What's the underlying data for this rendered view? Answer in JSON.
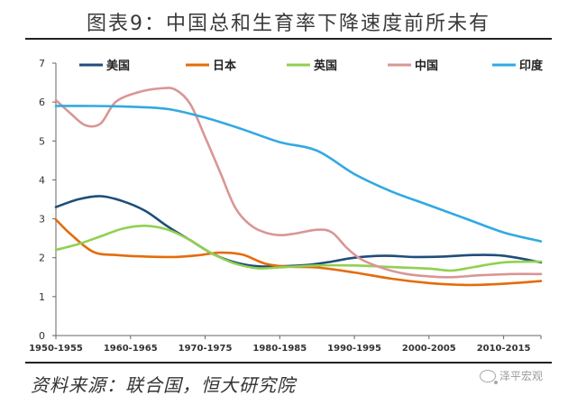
{
  "title": "图表9：中国总和生育率下降速度前所未有",
  "source": "资料来源：联合国，恒大研究院",
  "watermark": "泽平宏观",
  "chart_data": {
    "type": "line",
    "title": "图表9：中国总和生育率下降速度前所未有",
    "xlabel": "",
    "ylabel": "",
    "ylim": [
      0,
      7
    ],
    "yticks": [
      0,
      1,
      2,
      3,
      4,
      5,
      6,
      7
    ],
    "xlim": [
      1950,
      2015
    ],
    "xtick_labels": [
      "1950-1955",
      "1960-1965",
      "1970-1975",
      "1980-1985",
      "1990-1995",
      "2000-2005",
      "2010-2015"
    ],
    "xtick_positions": [
      1950,
      1960,
      1970,
      1980,
      1990,
      2000,
      2010
    ],
    "grid": false,
    "legend_position": "top",
    "series": [
      {
        "name": "美国",
        "color": "#1f4e79",
        "points": [
          [
            1950,
            3.3
          ],
          [
            1953,
            3.5
          ],
          [
            1956,
            3.58
          ],
          [
            1959,
            3.45
          ],
          [
            1962,
            3.2
          ],
          [
            1965,
            2.8
          ],
          [
            1968,
            2.45
          ],
          [
            1971,
            2.1
          ],
          [
            1974,
            1.88
          ],
          [
            1977,
            1.78
          ],
          [
            1980,
            1.78
          ],
          [
            1984,
            1.82
          ],
          [
            1987,
            1.9
          ],
          [
            1990,
            2.0
          ],
          [
            1994,
            2.05
          ],
          [
            1998,
            2.02
          ],
          [
            2002,
            2.03
          ],
          [
            2006,
            2.07
          ],
          [
            2010,
            2.05
          ],
          [
            2015,
            1.88
          ]
        ]
      },
      {
        "name": "日本",
        "color": "#e46c0a",
        "points": [
          [
            1950,
            2.98
          ],
          [
            1952,
            2.6
          ],
          [
            1955,
            2.15
          ],
          [
            1958,
            2.07
          ],
          [
            1962,
            2.03
          ],
          [
            1966,
            2.02
          ],
          [
            1969,
            2.06
          ],
          [
            1972,
            2.13
          ],
          [
            1975,
            2.08
          ],
          [
            1978,
            1.85
          ],
          [
            1981,
            1.77
          ],
          [
            1985,
            1.75
          ],
          [
            1990,
            1.62
          ],
          [
            1995,
            1.46
          ],
          [
            2000,
            1.35
          ],
          [
            2005,
            1.3
          ],
          [
            2010,
            1.33
          ],
          [
            2015,
            1.4
          ]
        ]
      },
      {
        "name": "英国",
        "color": "#92d050",
        "points": [
          [
            1950,
            2.2
          ],
          [
            1953,
            2.35
          ],
          [
            1956,
            2.55
          ],
          [
            1959,
            2.75
          ],
          [
            1962,
            2.82
          ],
          [
            1965,
            2.72
          ],
          [
            1968,
            2.45
          ],
          [
            1971,
            2.1
          ],
          [
            1974,
            1.85
          ],
          [
            1977,
            1.73
          ],
          [
            1980,
            1.75
          ],
          [
            1985,
            1.8
          ],
          [
            1990,
            1.8
          ],
          [
            1995,
            1.76
          ],
          [
            2000,
            1.72
          ],
          [
            2003,
            1.67
          ],
          [
            2006,
            1.76
          ],
          [
            2010,
            1.88
          ],
          [
            2015,
            1.9
          ]
        ]
      },
      {
        "name": "中国",
        "color": "#d99694",
        "points": [
          [
            1950,
            6.05
          ],
          [
            1952,
            5.7
          ],
          [
            1954,
            5.4
          ],
          [
            1956,
            5.45
          ],
          [
            1958,
            6.0
          ],
          [
            1961,
            6.25
          ],
          [
            1964,
            6.35
          ],
          [
            1966,
            6.32
          ],
          [
            1968,
            5.95
          ],
          [
            1970,
            5.1
          ],
          [
            1972,
            4.2
          ],
          [
            1974,
            3.3
          ],
          [
            1976,
            2.85
          ],
          [
            1978,
            2.65
          ],
          [
            1980,
            2.58
          ],
          [
            1982,
            2.62
          ],
          [
            1985,
            2.72
          ],
          [
            1987,
            2.65
          ],
          [
            1989,
            2.25
          ],
          [
            1991,
            1.95
          ],
          [
            1994,
            1.72
          ],
          [
            1997,
            1.58
          ],
          [
            2000,
            1.52
          ],
          [
            2003,
            1.5
          ],
          [
            2007,
            1.55
          ],
          [
            2011,
            1.58
          ],
          [
            2015,
            1.58
          ]
        ]
      },
      {
        "name": "印度",
        "color": "#31a9e1",
        "points": [
          [
            1950,
            5.9
          ],
          [
            1955,
            5.9
          ],
          [
            1960,
            5.88
          ],
          [
            1965,
            5.82
          ],
          [
            1970,
            5.6
          ],
          [
            1975,
            5.3
          ],
          [
            1980,
            4.97
          ],
          [
            1985,
            4.75
          ],
          [
            1990,
            4.15
          ],
          [
            1995,
            3.7
          ],
          [
            2000,
            3.35
          ],
          [
            2005,
            3.0
          ],
          [
            2010,
            2.65
          ],
          [
            2015,
            2.42
          ]
        ]
      }
    ]
  }
}
